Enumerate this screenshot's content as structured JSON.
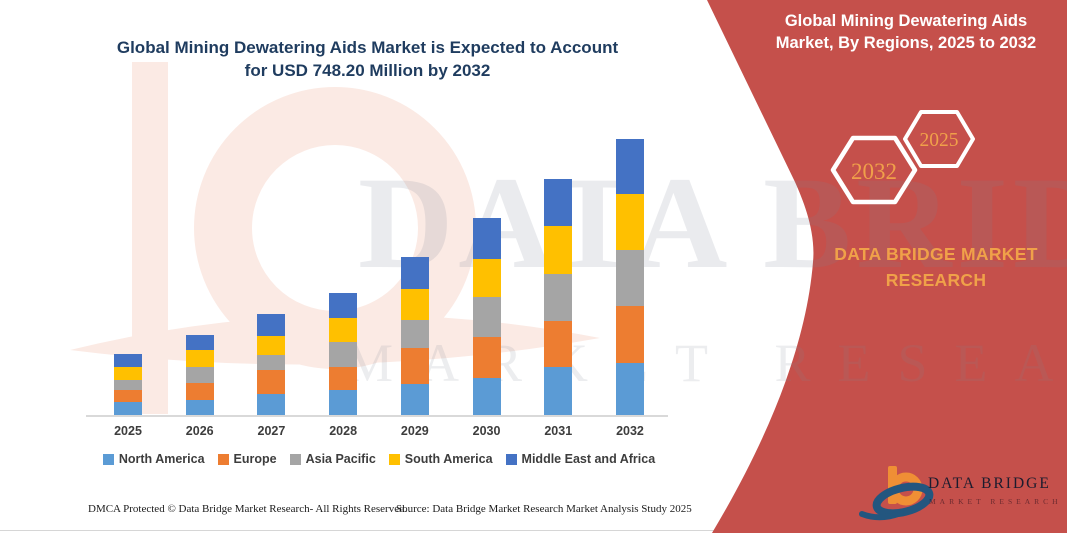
{
  "page": {
    "background": "#ffffff",
    "panel_color": "#c5504b",
    "accent_orange": "#f0a149"
  },
  "main_title": {
    "line1": "Global Mining Dewatering Aids Market is Expected to Account",
    "line2": "for USD 748.20 Million by 2032",
    "color": "#1f3c5f"
  },
  "side_panel": {
    "title_line1": "Global Mining Dewatering Aids",
    "title_line2": "Market, By Regions, 2025 to 2032",
    "hexagon_back_label": "2032",
    "hexagon_front_label": "2025",
    "brand_line1": "DATA BRIDGE MARKET",
    "brand_line2": "RESEARCH",
    "logo_name": "DATA BRIDGE",
    "logo_subtext": "MARKET RESEARCH"
  },
  "watermark": {
    "row1": "DATA BRIDGE",
    "row2": "MARKET RESEARCH"
  },
  "footer": {
    "left": "DMCA Protected © Data Bridge Market Research-  All Rights Reserved.",
    "right": "Source: Data Bridge Market Research  Market Analysis Study 2025"
  },
  "chart_data": {
    "type": "bar",
    "stacked": true,
    "unit": "USD Million",
    "title": "Global Mining Dewatering Aids Market, By Regions, 2025 to 2032",
    "xlabel": "",
    "ylabel": "",
    "grid": false,
    "y_axis_visible": false,
    "legend_position": "bottom",
    "categories": [
      "2025",
      "2026",
      "2027",
      "2028",
      "2029",
      "2030",
      "2031",
      "2032"
    ],
    "series": [
      {
        "name": "North America",
        "color": "#5b9bd5",
        "values": [
          36,
          41,
          56,
          68,
          85,
          101,
          129,
          142
        ]
      },
      {
        "name": "Europe",
        "color": "#ed7d31",
        "values": [
          32,
          46,
          66,
          62,
          96,
          110,
          126,
          154
        ]
      },
      {
        "name": "Asia Pacific",
        "color": "#a5a5a5",
        "values": [
          28,
          43,
          41,
          68,
          76,
          108,
          128,
          151
        ]
      },
      {
        "name": "South America",
        "color": "#ffc000",
        "values": [
          33,
          46,
          52,
          65,
          84,
          105,
          128,
          152
        ]
      },
      {
        "name": "Middle East and Africa",
        "color": "#4472c4",
        "values": [
          36,
          41,
          59,
          68,
          87,
          110,
          128,
          149.2
        ]
      }
    ]
  }
}
